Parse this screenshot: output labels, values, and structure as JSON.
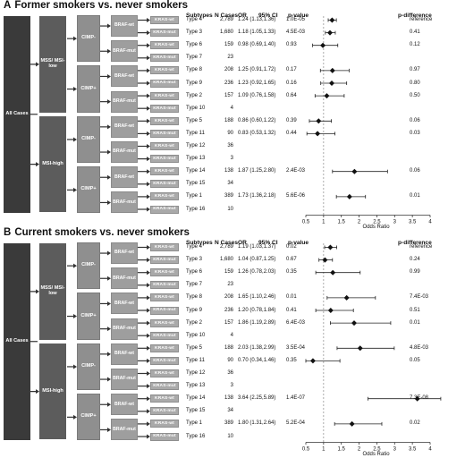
{
  "colors": {
    "dark": "#3a3a3a",
    "mid": "#5c5c5c",
    "light": "#8f8f8f",
    "kras": "#a9a9a9",
    "marker": "#111111"
  },
  "headers": {
    "subtypes": "Subtypes",
    "n": "N Cases",
    "or": "OR",
    "ci": "95% CI",
    "p": "p-value",
    "pdiff": "p-difference"
  },
  "diagram": {
    "all_cases": "All Cases",
    "mss": "MSS/ MSI-low",
    "msi": "MSI-high",
    "cimp_neg": "CIMP-",
    "cimp_pos": "CIMP+",
    "braf_wt": "BRAF-wt",
    "braf_mut": "BRAF-mut",
    "kras_wt": "KRAS-wt",
    "kras_mut": "KRAS-mut"
  },
  "panels": [
    {
      "letter": "A",
      "title": "Former smokers vs. never smokers",
      "axis_label": "Odds Ratio",
      "rows": [
        {
          "type": "Type 4",
          "n": "2,789",
          "or_ci": "1.24 (1.13,1.36)",
          "p": "1.0E-05",
          "pdiff": "reference",
          "or": 1.24,
          "lo": 1.13,
          "hi": 1.36
        },
        {
          "type": "Type 3",
          "n": "1,680",
          "or_ci": "1.18 (1.05,1.33)",
          "p": "4.5E-03",
          "pdiff": "0.41",
          "or": 1.18,
          "lo": 1.05,
          "hi": 1.33
        },
        {
          "type": "Type 6",
          "n": "159",
          "or_ci": "0.98 (0.69,1.40)",
          "p": "0.93",
          "pdiff": "0.12",
          "or": 0.98,
          "lo": 0.69,
          "hi": 1.4
        },
        {
          "type": "Type 7",
          "n": "23",
          "or_ci": "",
          "p": "",
          "pdiff": "",
          "or": null,
          "lo": null,
          "hi": null
        },
        {
          "type": "Type 8",
          "n": "208",
          "or_ci": "1.25 (0.91,1.72)",
          "p": "0.17",
          "pdiff": "0.97",
          "or": 1.25,
          "lo": 0.91,
          "hi": 1.72
        },
        {
          "type": "Type 9",
          "n": "236",
          "or_ci": "1.23 (0.92,1.65)",
          "p": "0.16",
          "pdiff": "0.80",
          "or": 1.23,
          "lo": 0.92,
          "hi": 1.65
        },
        {
          "type": "Type 2",
          "n": "157",
          "or_ci": "1.09 (0.76,1.58)",
          "p": "0.64",
          "pdiff": "0.50",
          "or": 1.09,
          "lo": 0.76,
          "hi": 1.58
        },
        {
          "type": "Type 10",
          "n": "4",
          "or_ci": "",
          "p": "",
          "pdiff": "",
          "or": null,
          "lo": null,
          "hi": null
        },
        {
          "type": "Type 5",
          "n": "188",
          "or_ci": "0.86 (0.60,1.22)",
          "p": "0.39",
          "pdiff": "0.06",
          "or": 0.86,
          "lo": 0.6,
          "hi": 1.22
        },
        {
          "type": "Type 11",
          "n": "90",
          "or_ci": "0.83 (0.53,1.32)",
          "p": "0.44",
          "pdiff": "0.03",
          "or": 0.83,
          "lo": 0.53,
          "hi": 1.32
        },
        {
          "type": "Type 12",
          "n": "36",
          "or_ci": "",
          "p": "",
          "pdiff": "",
          "or": null,
          "lo": null,
          "hi": null
        },
        {
          "type": "Type 13",
          "n": "3",
          "or_ci": "",
          "p": "",
          "pdiff": "",
          "or": null,
          "lo": null,
          "hi": null
        },
        {
          "type": "Type 14",
          "n": "138",
          "or_ci": "1.87 (1.25,2.80)",
          "p": "2.4E-03",
          "pdiff": "0.06",
          "or": 1.87,
          "lo": 1.25,
          "hi": 2.8
        },
        {
          "type": "Type 15",
          "n": "34",
          "or_ci": "",
          "p": "",
          "pdiff": "",
          "or": null,
          "lo": null,
          "hi": null
        },
        {
          "type": "Type 1",
          "n": "389",
          "or_ci": "1.73 (1.36,2.18)",
          "p": "5.6E-06",
          "pdiff": "0.01",
          "or": 1.73,
          "lo": 1.36,
          "hi": 2.18
        },
        {
          "type": "Type 16",
          "n": "10",
          "or_ci": "",
          "p": "",
          "pdiff": "",
          "or": null,
          "lo": null,
          "hi": null
        }
      ]
    },
    {
      "letter": "B",
      "title": "Current smokers vs. never smokers",
      "axis_label": "Odds Ratio",
      "rows": [
        {
          "type": "Type 4",
          "n": "2,789",
          "or_ci": "1.19 (1.03,1.37)",
          "p": "0.02",
          "pdiff": "reference",
          "or": 1.19,
          "lo": 1.03,
          "hi": 1.37
        },
        {
          "type": "Type 3",
          "n": "1,680",
          "or_ci": "1.04 (0.87,1.25)",
          "p": "0.67",
          "pdiff": "0.24",
          "or": 1.04,
          "lo": 0.87,
          "hi": 1.25
        },
        {
          "type": "Type 6",
          "n": "159",
          "or_ci": "1.26 (0.78,2.03)",
          "p": "0.35",
          "pdiff": "0.99",
          "or": 1.26,
          "lo": 0.78,
          "hi": 2.03
        },
        {
          "type": "Type 7",
          "n": "23",
          "or_ci": "",
          "p": "",
          "pdiff": "",
          "or": null,
          "lo": null,
          "hi": null
        },
        {
          "type": "Type 8",
          "n": "208",
          "or_ci": "1.65 (1.10,2.46)",
          "p": "0.01",
          "pdiff": "7.4E-03",
          "or": 1.65,
          "lo": 1.1,
          "hi": 2.46
        },
        {
          "type": "Type 9",
          "n": "236",
          "or_ci": "1.20 (0.78,1.84)",
          "p": "0.41",
          "pdiff": "0.51",
          "or": 1.2,
          "lo": 0.78,
          "hi": 1.84
        },
        {
          "type": "Type 2",
          "n": "157",
          "or_ci": "1.86 (1.19,2.89)",
          "p": "6.4E-03",
          "pdiff": "0.01",
          "or": 1.86,
          "lo": 1.19,
          "hi": 2.89
        },
        {
          "type": "Type 10",
          "n": "4",
          "or_ci": "",
          "p": "",
          "pdiff": "",
          "or": null,
          "lo": null,
          "hi": null
        },
        {
          "type": "Type 5",
          "n": "188",
          "or_ci": "2.03 (1.38,2.99)",
          "p": "3.5E-04",
          "pdiff": "4.8E-03",
          "or": 2.03,
          "lo": 1.38,
          "hi": 2.99
        },
        {
          "type": "Type 11",
          "n": "90",
          "or_ci": "0.70 (0.34,1.46)",
          "p": "0.35",
          "pdiff": "0.05",
          "or": 0.7,
          "lo": 0.34,
          "hi": 1.46
        },
        {
          "type": "Type 12",
          "n": "36",
          "or_ci": "",
          "p": "",
          "pdiff": "",
          "or": null,
          "lo": null,
          "hi": null
        },
        {
          "type": "Type 13",
          "n": "3",
          "or_ci": "",
          "p": "",
          "pdiff": "",
          "or": null,
          "lo": null,
          "hi": null
        },
        {
          "type": "Type 14",
          "n": "138",
          "or_ci": "3.64 (2.25,5.89)",
          "p": "1.4E-07",
          "pdiff": "7.3E-08",
          "or": 3.64,
          "lo": 2.25,
          "hi": 5.89
        },
        {
          "type": "Type 15",
          "n": "34",
          "or_ci": "",
          "p": "",
          "pdiff": "",
          "or": null,
          "lo": null,
          "hi": null
        },
        {
          "type": "Type 1",
          "n": "389",
          "or_ci": "1.80 (1.31,2.64)",
          "p": "5.2E-04",
          "pdiff": "0.02",
          "or": 1.8,
          "lo": 1.31,
          "hi": 2.64
        },
        {
          "type": "Type 16",
          "n": "10",
          "or_ci": "",
          "p": "",
          "pdiff": "",
          "or": null,
          "lo": null,
          "hi": null
        }
      ]
    }
  ],
  "axis": {
    "min": 0.5,
    "max": 4,
    "ticks": [
      "0.5",
      "1",
      "1.5",
      "2",
      "2.5",
      "3",
      "3.5",
      "4"
    ]
  }
}
